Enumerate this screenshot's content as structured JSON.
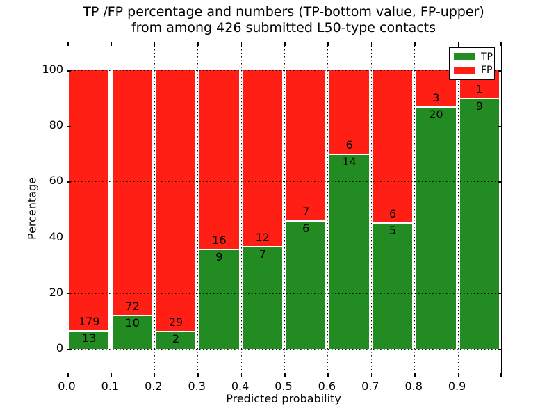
{
  "chart_data": {
    "type": "bar",
    "stacked": true,
    "percent_normalized": true,
    "title_line1": "TP /FP percentage and numbers (TP-bottom value, FP-upper)",
    "title_line2": "from among 426 submitted L50-type contacts",
    "xlabel": "Predicted probability",
    "ylabel": "Percentage",
    "xlim": [
      0.0,
      1.0
    ],
    "ylim": [
      -10,
      110
    ],
    "xticks": [
      0.0,
      0.1,
      0.2,
      0.3,
      0.4,
      0.5,
      0.6,
      0.7,
      0.8,
      0.9
    ],
    "xtick_labels": [
      "0.0",
      "0.1",
      "0.2",
      "0.3",
      "0.4",
      "0.5",
      "0.6",
      "0.7",
      "0.8",
      "0.9"
    ],
    "yticks": [
      0,
      20,
      40,
      60,
      80,
      100
    ],
    "grid": true,
    "bins": {
      "starts": [
        0.0,
        0.1,
        0.2,
        0.3,
        0.4,
        0.5,
        0.6,
        0.7,
        0.8,
        0.9
      ],
      "width": 0.1
    },
    "series": [
      {
        "name": "TP",
        "color": "#228b22",
        "values": [
          13,
          10,
          2,
          9,
          7,
          6,
          14,
          5,
          20,
          9
        ]
      },
      {
        "name": "FP",
        "color": "#ff1f14",
        "values": [
          179,
          72,
          29,
          16,
          12,
          7,
          6,
          6,
          3,
          1
        ]
      }
    ],
    "total_submitted": 426,
    "legend": {
      "position": "upper right",
      "entries": [
        "TP",
        "FP"
      ]
    }
  }
}
